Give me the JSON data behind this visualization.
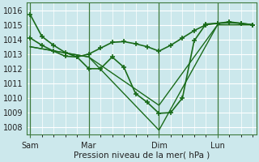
{
  "background_color": "#cce8ec",
  "grid_color": "#ffffff",
  "line_color": "#1a6b1a",
  "xlabel": "Pression niveau de la mer( hPa )",
  "ylim": [
    1007.5,
    1016.5
  ],
  "yticks": [
    1008,
    1009,
    1010,
    1011,
    1012,
    1013,
    1014,
    1015,
    1016
  ],
  "xtick_labels": [
    "Sam",
    "Mar",
    "Dim",
    "Lun"
  ],
  "xtick_positions": [
    0,
    5,
    11,
    16
  ],
  "vline_positions": [
    0,
    5,
    11,
    16
  ],
  "xlim": [
    -0.3,
    19.3
  ],
  "series": [
    {
      "x": [
        0,
        1,
        2,
        3,
        4,
        5,
        6,
        7,
        8,
        9,
        10,
        11,
        12,
        13,
        14,
        15,
        16,
        17,
        18,
        19
      ],
      "y": [
        1015.7,
        1014.2,
        1013.6,
        1013.1,
        1012.8,
        1012.0,
        1012.0,
        1012.8,
        1012.1,
        1010.3,
        1009.7,
        1008.95,
        1009.0,
        1010.0,
        1013.9,
        1015.05,
        1015.1,
        1015.2,
        1015.1,
        1015.0
      ],
      "marker": "+",
      "linewidth": 1.2,
      "markersize": 4.5
    },
    {
      "x": [
        0,
        1,
        2,
        3,
        4,
        5,
        6,
        7,
        8,
        9,
        10,
        11,
        12,
        13,
        14,
        15,
        16,
        17,
        18,
        19
      ],
      "y": [
        1014.1,
        1013.6,
        1013.2,
        1012.85,
        1012.8,
        1013.0,
        1013.4,
        1013.8,
        1013.85,
        1013.7,
        1013.5,
        1013.2,
        1013.6,
        1014.1,
        1014.6,
        1015.0,
        1015.1,
        1015.15,
        1015.1,
        1015.0
      ],
      "marker": "+",
      "linewidth": 1.2,
      "markersize": 4.5
    },
    {
      "x": [
        0,
        5,
        11,
        16,
        19
      ],
      "y": [
        1013.5,
        1012.8,
        1009.5,
        1015.0,
        1015.0
      ],
      "marker": null,
      "linewidth": 1.0,
      "markersize": 0
    },
    {
      "x": [
        0,
        5,
        11,
        16,
        19
      ],
      "y": [
        1013.5,
        1012.8,
        1007.8,
        1015.0,
        1015.0
      ],
      "marker": null,
      "linewidth": 1.0,
      "markersize": 0
    }
  ]
}
